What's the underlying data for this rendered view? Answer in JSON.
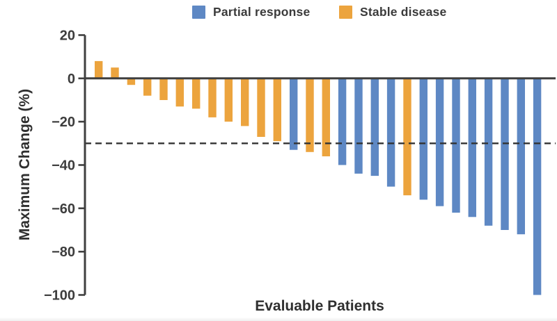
{
  "chart_data": {
    "type": "bar",
    "variant": "waterfall",
    "title": "",
    "xlabel": "Evaluable Patients",
    "ylabel": "Maximum Change (%)",
    "ylim": [
      -100,
      20
    ],
    "grid": false,
    "legend_position": "top-center",
    "ytick_values": [
      20,
      0,
      -20,
      -40,
      -60,
      -80,
      -100
    ],
    "ytick_labels": [
      "20",
      "0",
      "−20",
      "−40",
      "−60",
      "−80",
      "−100"
    ],
    "reference_line": {
      "value": -30,
      "style": "dashed",
      "color": "#333333"
    },
    "legend": [
      {
        "name": "Partial response",
        "color": "#5E88C4"
      },
      {
        "name": "Stable disease",
        "color": "#ECA43E"
      }
    ],
    "axis_color": "#3f3f3f",
    "patients": [
      {
        "value": 8,
        "response": "Stable disease"
      },
      {
        "value": 5,
        "response": "Stable disease"
      },
      {
        "value": -3,
        "response": "Stable disease"
      },
      {
        "value": -8,
        "response": "Stable disease"
      },
      {
        "value": -10,
        "response": "Stable disease"
      },
      {
        "value": -13,
        "response": "Stable disease"
      },
      {
        "value": -14,
        "response": "Stable disease"
      },
      {
        "value": -18,
        "response": "Stable disease"
      },
      {
        "value": -20,
        "response": "Stable disease"
      },
      {
        "value": -22,
        "response": "Stable disease"
      },
      {
        "value": -27,
        "response": "Stable disease"
      },
      {
        "value": -29,
        "response": "Stable disease"
      },
      {
        "value": -33,
        "response": "Partial response"
      },
      {
        "value": -34,
        "response": "Stable disease"
      },
      {
        "value": -36,
        "response": "Stable disease"
      },
      {
        "value": -40,
        "response": "Partial response"
      },
      {
        "value": -44,
        "response": "Partial response"
      },
      {
        "value": -45,
        "response": "Partial response"
      },
      {
        "value": -50,
        "response": "Partial response"
      },
      {
        "value": -54,
        "response": "Stable disease"
      },
      {
        "value": -56,
        "response": "Partial response"
      },
      {
        "value": -59,
        "response": "Partial response"
      },
      {
        "value": -62,
        "response": "Partial response"
      },
      {
        "value": -64,
        "response": "Partial response"
      },
      {
        "value": -68,
        "response": "Partial response"
      },
      {
        "value": -70,
        "response": "Partial response"
      },
      {
        "value": -72,
        "response": "Partial response"
      },
      {
        "value": -100,
        "response": "Partial response"
      }
    ]
  }
}
